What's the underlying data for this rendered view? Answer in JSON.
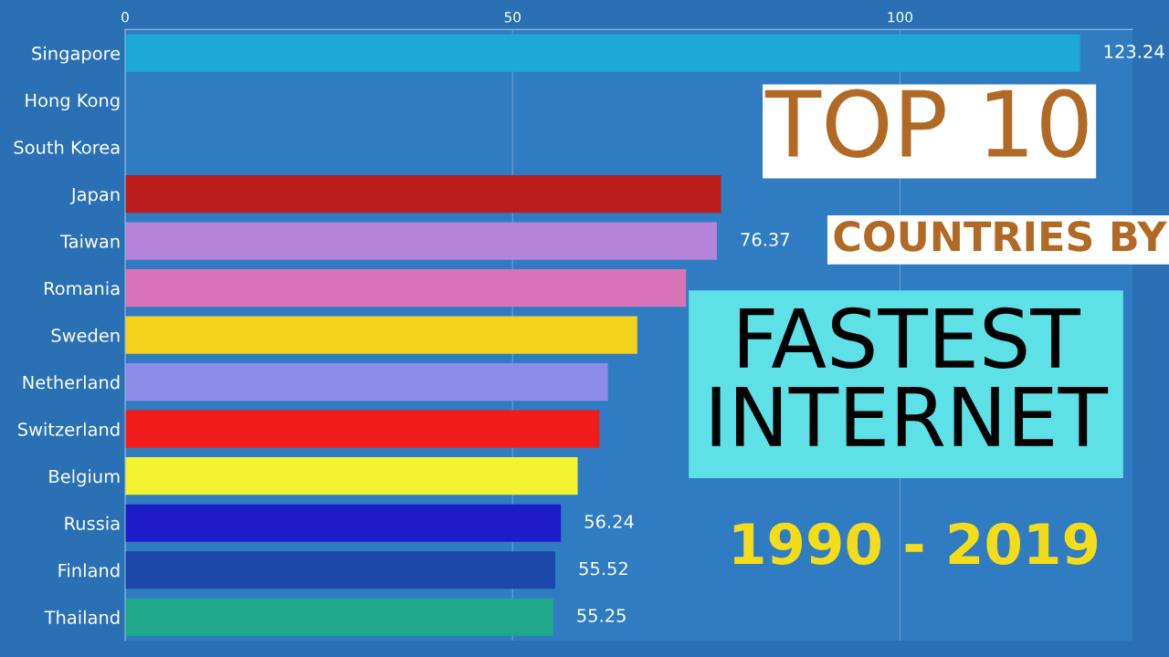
{
  "chart_data": {
    "type": "bar",
    "orientation": "horizontal",
    "title": "TOP 10",
    "subtitle": "COUNTRIES BY",
    "annotations": [
      "FASTEST\nINTERNET",
      "1990 - 2019"
    ],
    "categories": [
      "Singapore",
      "Hong Kong",
      "South Korea",
      "Japan",
      "Taiwan",
      "Romania",
      "Sweden",
      "Netherland",
      "Switzerland",
      "Belgium",
      "Russia",
      "Finland",
      "Thailand"
    ],
    "values": [
      123.24,
      null,
      null,
      76.9,
      76.37,
      72.4,
      66.1,
      62.3,
      61.2,
      58.4,
      56.24,
      55.52,
      55.25
    ],
    "value_labels": [
      "123.24",
      null,
      null,
      null,
      "76.37",
      null,
      null,
      null,
      null,
      null,
      "56.24",
      "55.52",
      "55.25"
    ],
    "colors": [
      "#1ea8d8",
      "#1fae8a",
      "#f2f2f2",
      "#bb1c1c",
      "#b484d8",
      "#d873b8",
      "#f2d21a",
      "#8c8ce8",
      "#f21c1c",
      "#f2f22e",
      "#1c1cc8",
      "#1c46a8",
      "#1fa88a"
    ],
    "xlim": [
      0,
      130
    ],
    "xticks": [
      0,
      50,
      100
    ],
    "grid": "x"
  }
}
